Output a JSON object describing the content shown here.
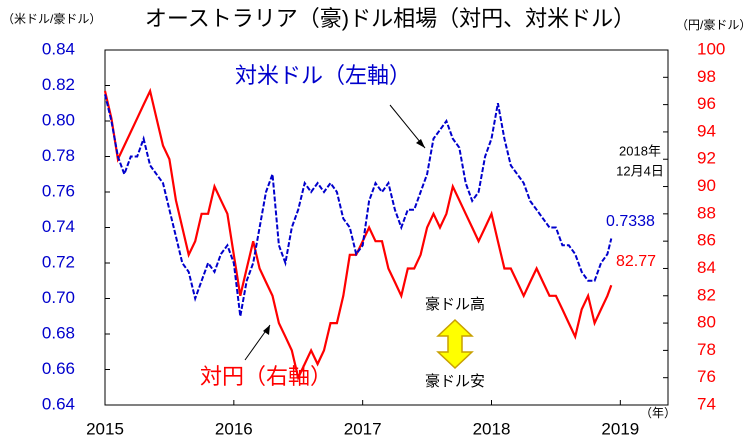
{
  "chart_data": {
    "type": "line",
    "title": "オーストラリア（豪)ドル相場（対円、対米ドル）",
    "y_axis_label": "（米ドル/豪ドル）",
    "y2_axis_label": "（円/豪ドル）",
    "x_axis_label": "（年）",
    "annotations": [
      "2018年",
      "12月4日",
      "0.7338",
      "82.77",
      "豪ドル高",
      "豪ドル安"
    ],
    "x": [
      2015.0,
      2015.05,
      2015.1,
      2015.15,
      2015.2,
      2015.25,
      2015.3,
      2015.35,
      2015.4,
      2015.45,
      2015.5,
      2015.55,
      2015.6,
      2015.65,
      2015.7,
      2015.75,
      2015.8,
      2015.85,
      2015.9,
      2015.95,
      2016.0,
      2016.05,
      2016.1,
      2016.15,
      2016.2,
      2016.25,
      2016.3,
      2016.35,
      2016.4,
      2016.45,
      2016.5,
      2016.55,
      2016.6,
      2016.65,
      2016.7,
      2016.75,
      2016.8,
      2016.85,
      2016.9,
      2016.95,
      2017.0,
      2017.05,
      2017.1,
      2017.15,
      2017.2,
      2017.25,
      2017.3,
      2017.35,
      2017.4,
      2017.45,
      2017.5,
      2017.55,
      2017.6,
      2017.65,
      2017.7,
      2017.75,
      2017.8,
      2017.85,
      2017.9,
      2017.95,
      2018.0,
      2018.05,
      2018.1,
      2018.15,
      2018.2,
      2018.25,
      2018.3,
      2018.35,
      2018.4,
      2018.45,
      2018.5,
      2018.55,
      2018.6,
      2018.65,
      2018.7,
      2018.75,
      2018.8,
      2018.85,
      2018.9,
      2018.93
    ],
    "series": [
      {
        "name": "対米ドル（左軸）",
        "color": "#0000cc",
        "dashed": true,
        "axis": "y",
        "values": [
          0.815,
          0.8,
          0.78,
          0.77,
          0.78,
          0.78,
          0.79,
          0.775,
          0.77,
          0.765,
          0.75,
          0.735,
          0.72,
          0.715,
          0.7,
          0.71,
          0.72,
          0.715,
          0.725,
          0.73,
          0.72,
          0.69,
          0.71,
          0.72,
          0.74,
          0.76,
          0.77,
          0.73,
          0.72,
          0.74,
          0.75,
          0.765,
          0.76,
          0.765,
          0.76,
          0.765,
          0.76,
          0.745,
          0.74,
          0.725,
          0.73,
          0.755,
          0.765,
          0.76,
          0.765,
          0.75,
          0.74,
          0.75,
          0.75,
          0.76,
          0.77,
          0.79,
          0.795,
          0.8,
          0.79,
          0.785,
          0.765,
          0.755,
          0.76,
          0.78,
          0.79,
          0.81,
          0.79,
          0.775,
          0.77,
          0.765,
          0.755,
          0.75,
          0.745,
          0.74,
          0.74,
          0.73,
          0.73,
          0.725,
          0.715,
          0.71,
          0.71,
          0.72,
          0.725,
          0.7338
        ]
      },
      {
        "name": "対円（右軸）",
        "color": "#ff0000",
        "dashed": false,
        "axis": "y2",
        "values": [
          97,
          95,
          92,
          93,
          94,
          95,
          96,
          97,
          95,
          93,
          92,
          89,
          87,
          85,
          86,
          88,
          88,
          90,
          89,
          88,
          85,
          82,
          84,
          86,
          84,
          83,
          82,
          80,
          79,
          78,
          76,
          77,
          78,
          77,
          78,
          80,
          80,
          82,
          85,
          85,
          86,
          87,
          86,
          86,
          84,
          83,
          82,
          84,
          84,
          85,
          87,
          88,
          87,
          88,
          90,
          89,
          88,
          87,
          86,
          87,
          88,
          86,
          84,
          84,
          83,
          82,
          83,
          84,
          83,
          82,
          82,
          81,
          80,
          79,
          81,
          82,
          80,
          81,
          82,
          82.77
        ]
      }
    ],
    "xlim": [
      2015,
      2019.37
    ],
    "xticks": [
      2015,
      2016,
      2017,
      2018,
      2019
    ],
    "ylim": [
      0.64,
      0.84
    ],
    "yticks": [
      0.64,
      0.66,
      0.68,
      {
        "value": 0.7,
        "label": "0.70"
      },
      0.72,
      0.74,
      0.76,
      0.78,
      {
        "value": 0.8,
        "label": "0.80"
      },
      0.82,
      0.84
    ],
    "y2lim": [
      74,
      100
    ],
    "y2ticks": [
      74,
      76,
      78,
      80,
      82,
      84,
      86,
      88,
      90,
      92,
      94,
      96,
      98,
      100
    ]
  }
}
